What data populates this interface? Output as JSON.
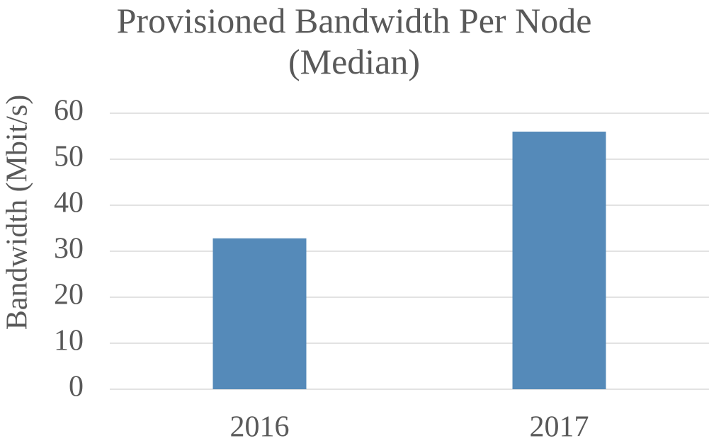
{
  "chart_data": {
    "type": "bar",
    "title": "Provisioned Bandwidth Per Node (Median)",
    "y_label": "Bandwidth (Mbit/s)",
    "categories": [
      "2016",
      "2017"
    ],
    "values": [
      32.8,
      56.0
    ],
    "color": "#558ab9",
    "ylim": [
      0,
      60
    ],
    "yticks": [
      0,
      10,
      20,
      30,
      40,
      50,
      60
    ],
    "grid": true
  }
}
